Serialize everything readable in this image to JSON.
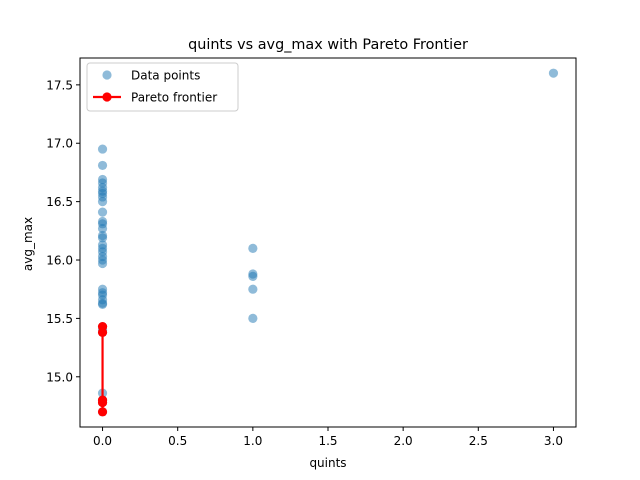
{
  "chart_data": {
    "type": "scatter",
    "title": "quints vs avg_max with Pareto Frontier",
    "xlabel": "quints",
    "ylabel": "avg_max",
    "xlim": [
      -0.15,
      3.15
    ],
    "ylim": [
      14.57,
      17.73
    ],
    "xticks": [
      "0.0",
      "0.5",
      "1.0",
      "1.5",
      "2.0",
      "2.5",
      "3.0"
    ],
    "yticks": [
      "15.0",
      "15.5",
      "16.0",
      "16.5",
      "17.0",
      "17.5"
    ],
    "grid": false,
    "legend_position": "upper-left",
    "colors": {
      "data": "#1f77b4",
      "frontier": "#ff0000"
    },
    "series": [
      {
        "name": "Data points",
        "kind": "scatter",
        "points": [
          [
            0,
            14.7
          ],
          [
            0,
            14.78
          ],
          [
            0,
            14.8
          ],
          [
            0,
            14.86
          ],
          [
            0,
            15.38
          ],
          [
            0,
            15.4
          ],
          [
            0,
            15.43
          ],
          [
            0,
            15.62
          ],
          [
            0,
            15.63
          ],
          [
            0,
            15.66
          ],
          [
            0,
            15.7
          ],
          [
            0,
            15.72
          ],
          [
            0,
            15.75
          ],
          [
            0,
            15.97
          ],
          [
            0,
            16.0
          ],
          [
            0,
            16.03
          ],
          [
            0,
            16.07
          ],
          [
            0,
            16.1
          ],
          [
            0,
            16.13
          ],
          [
            0,
            16.19
          ],
          [
            0,
            16.21
          ],
          [
            0,
            16.27
          ],
          [
            0,
            16.31
          ],
          [
            0,
            16.33
          ],
          [
            0,
            16.41
          ],
          [
            0,
            16.5
          ],
          [
            0,
            16.54
          ],
          [
            0,
            16.57
          ],
          [
            0,
            16.59
          ],
          [
            0,
            16.62
          ],
          [
            0,
            16.66
          ],
          [
            0,
            16.69
          ],
          [
            0,
            16.81
          ],
          [
            0,
            16.95
          ],
          [
            1,
            15.5
          ],
          [
            1,
            15.75
          ],
          [
            1,
            15.86
          ],
          [
            1,
            15.88
          ],
          [
            1,
            16.1
          ],
          [
            3,
            17.6
          ]
        ]
      },
      {
        "name": "Pareto frontier",
        "kind": "line",
        "points": [
          [
            0,
            15.43
          ],
          [
            0,
            15.38
          ],
          [
            0,
            14.8
          ],
          [
            0,
            14.78
          ],
          [
            0,
            14.7
          ]
        ]
      }
    ]
  }
}
